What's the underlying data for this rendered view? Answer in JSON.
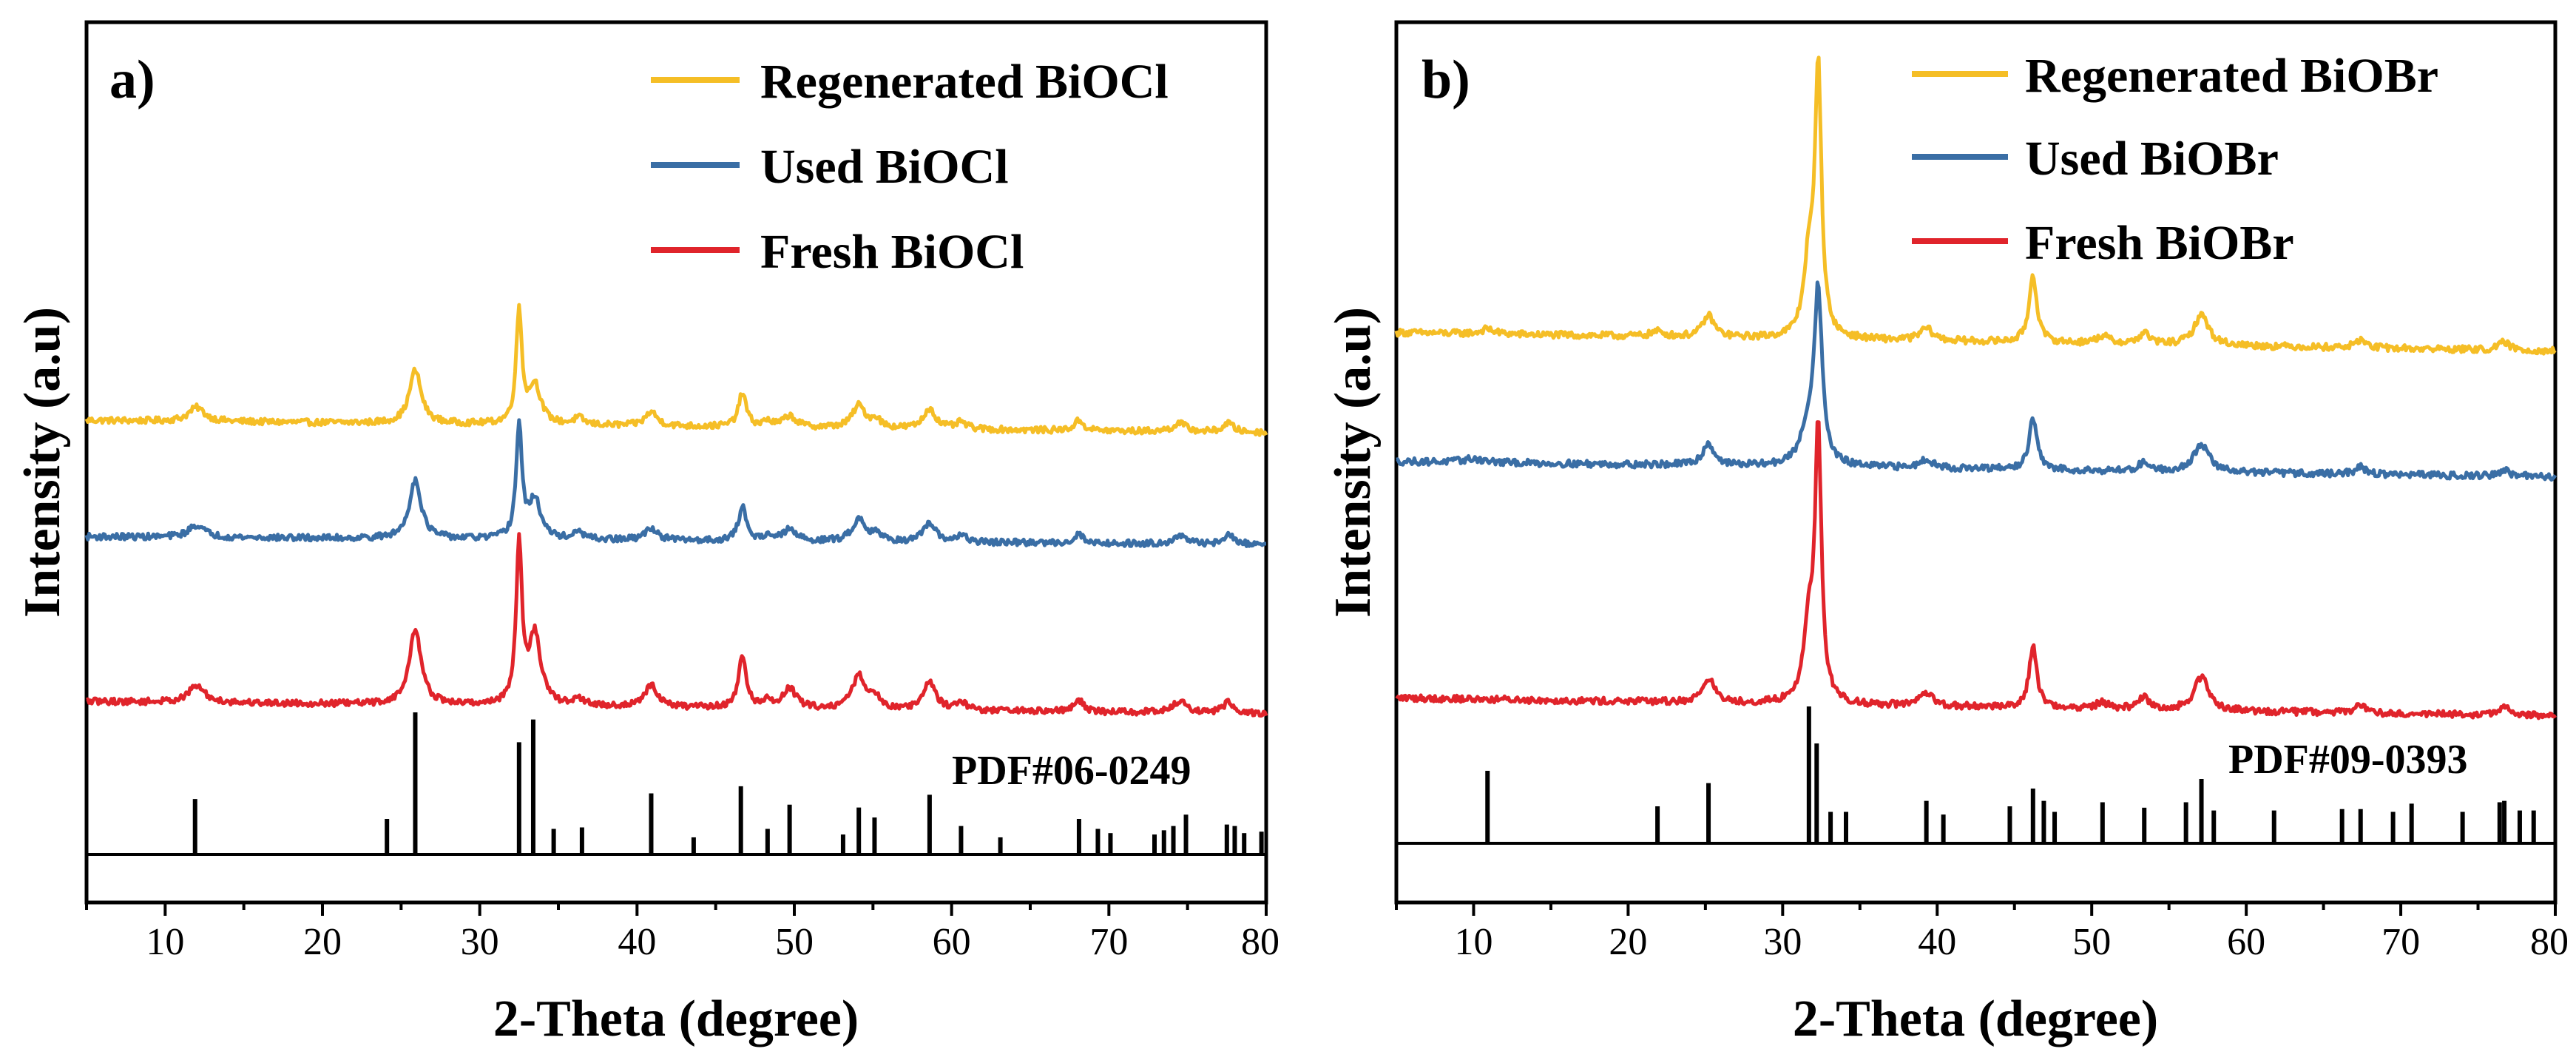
{
  "chart_data": [
    {
      "type": "line",
      "panel_label": "a)",
      "xlabel": "2-Theta (degree)",
      "ylabel": "Intensity (a.u)",
      "xlim": [
        5,
        80
      ],
      "xticks": [
        10,
        20,
        30,
        40,
        50,
        60,
        70,
        80
      ],
      "legend_position": "top-right",
      "reference_label": "PDF#06-0249",
      "series": [
        {
          "name": "Regenerated BiOCl",
          "color": "#F5BE26",
          "baseline": 0.555,
          "slope": -0.022,
          "peaks": [
            [
              12.0,
              0.025,
              0.6
            ],
            [
              25.9,
              0.095,
              0.45
            ],
            [
              32.5,
              0.2,
              0.22
            ],
            [
              33.5,
              0.07,
              0.45
            ],
            [
              36.3,
              0.012,
              0.4
            ],
            [
              40.9,
              0.025,
              0.45
            ],
            [
              46.7,
              0.06,
              0.3
            ],
            [
              48.3,
              0.01,
              0.3
            ],
            [
              49.7,
              0.02,
              0.5
            ],
            [
              54.1,
              0.04,
              0.5
            ],
            [
              55.2,
              0.015,
              0.35
            ],
            [
              58.6,
              0.036,
              0.45
            ],
            [
              60.6,
              0.012,
              0.4
            ],
            [
              68.1,
              0.018,
              0.35
            ],
            [
              74.5,
              0.015,
              0.5
            ],
            [
              77.6,
              0.016,
              0.4
            ]
          ]
        },
        {
          "name": "Used BiOCl",
          "color": "#3A6EA5",
          "baseline": 0.348,
          "slope": -0.014,
          "peaks": [
            [
              12.0,
              0.022,
              0.6
            ],
            [
              25.9,
              0.105,
              0.45
            ],
            [
              32.5,
              0.2,
              0.22
            ],
            [
              33.5,
              0.07,
              0.45
            ],
            [
              36.3,
              0.012,
              0.4
            ],
            [
              40.9,
              0.022,
              0.45
            ],
            [
              46.7,
              0.06,
              0.3
            ],
            [
              48.3,
              0.01,
              0.3
            ],
            [
              49.7,
              0.02,
              0.5
            ],
            [
              54.1,
              0.04,
              0.5
            ],
            [
              55.2,
              0.015,
              0.35
            ],
            [
              58.6,
              0.033,
              0.45
            ],
            [
              60.6,
              0.012,
              0.4
            ],
            [
              68.1,
              0.016,
              0.35
            ],
            [
              74.5,
              0.014,
              0.5
            ],
            [
              77.6,
              0.016,
              0.4
            ]
          ]
        },
        {
          "name": "Fresh BiOCl",
          "color": "#E0242B",
          "baseline": 0.055,
          "slope": -0.022,
          "peaks": [
            [
              12.0,
              0.03,
              0.6
            ],
            [
              25.9,
              0.135,
              0.45
            ],
            [
              32.5,
              0.285,
              0.22
            ],
            [
              33.5,
              0.125,
              0.45
            ],
            [
              36.3,
              0.012,
              0.4
            ],
            [
              40.9,
              0.04,
              0.45
            ],
            [
              46.7,
              0.09,
              0.3
            ],
            [
              48.3,
              0.012,
              0.3
            ],
            [
              49.7,
              0.035,
              0.5
            ],
            [
              54.1,
              0.06,
              0.5
            ],
            [
              55.2,
              0.02,
              0.35
            ],
            [
              58.6,
              0.05,
              0.45
            ],
            [
              60.6,
              0.015,
              0.4
            ],
            [
              68.1,
              0.02,
              0.35
            ],
            [
              74.5,
              0.02,
              0.5
            ],
            [
              77.6,
              0.02,
              0.4
            ]
          ]
        }
      ],
      "reference_peaks": [
        [
          11.9,
          0.39
        ],
        [
          24.1,
          0.25
        ],
        [
          25.9,
          1.0
        ],
        [
          32.5,
          0.79
        ],
        [
          33.4,
          0.95
        ],
        [
          34.7,
          0.18
        ],
        [
          36.5,
          0.19
        ],
        [
          40.9,
          0.43
        ],
        [
          43.6,
          0.12
        ],
        [
          46.6,
          0.48
        ],
        [
          48.3,
          0.18
        ],
        [
          49.7,
          0.35
        ],
        [
          53.1,
          0.14
        ],
        [
          54.1,
          0.33
        ],
        [
          55.1,
          0.26
        ],
        [
          58.6,
          0.42
        ],
        [
          60.6,
          0.2
        ],
        [
          63.1,
          0.12
        ],
        [
          68.1,
          0.25
        ],
        [
          69.3,
          0.18
        ],
        [
          70.1,
          0.15
        ],
        [
          72.9,
          0.14
        ],
        [
          73.5,
          0.17
        ],
        [
          74.1,
          0.2
        ],
        [
          74.9,
          0.28
        ],
        [
          77.5,
          0.21
        ],
        [
          78.0,
          0.2
        ],
        [
          78.6,
          0.15
        ],
        [
          79.7,
          0.16
        ]
      ]
    },
    {
      "type": "line",
      "panel_label": "b)",
      "xlabel": "2-Theta (degree)",
      "ylabel": "Intensity (a.u)",
      "xlim": [
        5,
        80
      ],
      "xticks": [
        10,
        20,
        30,
        40,
        50,
        60,
        70,
        80
      ],
      "legend_position": "top-right",
      "reference_label": "PDF#09-0393",
      "series": [
        {
          "name": "Regenerated BiOBr",
          "color": "#F5BE26",
          "baseline": 0.615,
          "slope": -0.03,
          "peaks": [
            [
              10.9,
              0.008,
              0.5
            ],
            [
              21.9,
              0.008,
              0.5
            ],
            [
              25.2,
              0.035,
              0.45
            ],
            [
              31.7,
              0.12,
              0.4
            ],
            [
              32.3,
              0.43,
              0.25
            ],
            [
              39.3,
              0.02,
              0.5
            ],
            [
              46.2,
              0.11,
              0.3
            ],
            [
              50.7,
              0.012,
              0.5
            ],
            [
              53.4,
              0.018,
              0.4
            ],
            [
              57.1,
              0.05,
              0.55
            ],
            [
              67.4,
              0.013,
              0.4
            ],
            [
              76.7,
              0.013,
              0.4
            ]
          ]
        },
        {
          "name": "Used BiOBr",
          "color": "#3A6EA5",
          "baseline": 0.405,
          "slope": -0.025,
          "peaks": [
            [
              10.0,
              0.006,
              0.8
            ],
            [
              25.2,
              0.035,
              0.45
            ],
            [
              31.7,
              0.06,
              0.6
            ],
            [
              32.3,
              0.27,
              0.3
            ],
            [
              39.3,
              0.015,
              0.5
            ],
            [
              46.2,
              0.085,
              0.3
            ],
            [
              53.4,
              0.015,
              0.4
            ],
            [
              57.1,
              0.045,
              0.6
            ],
            [
              67.4,
              0.012,
              0.4
            ],
            [
              76.7,
              0.01,
              0.4
            ]
          ]
        },
        {
          "name": "Fresh BiOBr",
          "color": "#E0242B",
          "baseline": 0.02,
          "slope": -0.03,
          "peaks": [
            [
              25.2,
              0.04,
              0.45
            ],
            [
              31.7,
              0.12,
              0.4
            ],
            [
              32.3,
              0.43,
              0.25
            ],
            [
              39.3,
              0.02,
              0.5
            ],
            [
              46.2,
              0.1,
              0.3
            ],
            [
              50.7,
              0.01,
              0.5
            ],
            [
              53.4,
              0.02,
              0.4
            ],
            [
              57.1,
              0.055,
              0.55
            ],
            [
              67.4,
              0.015,
              0.4
            ],
            [
              76.7,
              0.015,
              0.4
            ]
          ]
        }
      ],
      "reference_peaks": [
        [
          10.9,
          0.53
        ],
        [
          21.9,
          0.27
        ],
        [
          25.2,
          0.44
        ],
        [
          31.7,
          1.0
        ],
        [
          32.2,
          0.73
        ],
        [
          33.1,
          0.23
        ],
        [
          34.1,
          0.23
        ],
        [
          39.3,
          0.31
        ],
        [
          40.4,
          0.21
        ],
        [
          44.7,
          0.27
        ],
        [
          46.2,
          0.4
        ],
        [
          46.9,
          0.31
        ],
        [
          47.6,
          0.23
        ],
        [
          50.7,
          0.3
        ],
        [
          53.4,
          0.26
        ],
        [
          56.1,
          0.3
        ],
        [
          57.1,
          0.47
        ],
        [
          57.9,
          0.24
        ],
        [
          61.8,
          0.24
        ],
        [
          66.2,
          0.25
        ],
        [
          67.4,
          0.25
        ],
        [
          69.5,
          0.23
        ],
        [
          70.7,
          0.29
        ],
        [
          74.0,
          0.23
        ],
        [
          76.4,
          0.3
        ],
        [
          76.7,
          0.31
        ],
        [
          77.7,
          0.24
        ],
        [
          78.6,
          0.24
        ]
      ]
    }
  ]
}
